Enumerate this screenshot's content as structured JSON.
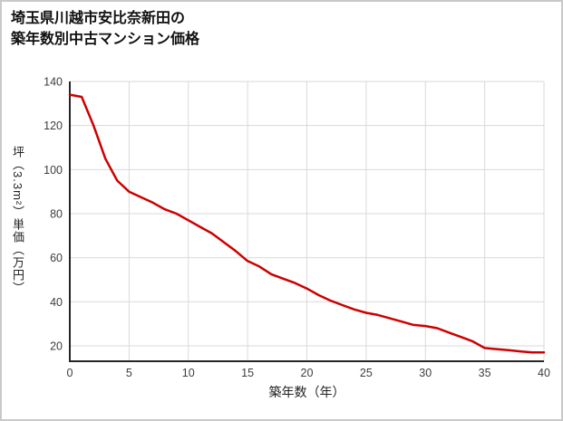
{
  "title": {
    "lines": [
      "埼玉県川越市安比奈新田の",
      "築年数別中古マンション価格"
    ]
  },
  "chart_data": {
    "type": "line",
    "title": "埼玉県川越市安比奈新田の築年数別中古マンション価格",
    "xlabel": "築年数（年）",
    "ylabel": "坪（3.3m²）単価（万円）",
    "x": [
      0,
      1,
      2,
      3,
      4,
      5,
      6,
      7,
      8,
      9,
      10,
      11,
      12,
      13,
      14,
      15,
      16,
      17,
      18,
      19,
      20,
      21,
      22,
      23,
      24,
      25,
      26,
      27,
      28,
      29,
      30,
      31,
      32,
      33,
      34,
      35,
      36,
      37,
      38,
      39,
      40
    ],
    "series": [
      {
        "name": "坪単価（万円）",
        "values": [
          134,
          133,
          120,
          105,
          95,
          90,
          87.5,
          85,
          82,
          80,
          77,
          74,
          71,
          67,
          63,
          58.5,
          56,
          52.5,
          50.5,
          48.5,
          46,
          43,
          40.5,
          38.5,
          36.5,
          35,
          34,
          32.5,
          31,
          29.5,
          29,
          28,
          26,
          24,
          22,
          19,
          18.5,
          18,
          17.5,
          17,
          17
        ]
      }
    ],
    "xlim": [
      0,
      40
    ],
    "ylim": [
      13,
      140
    ],
    "xticks": [
      0,
      5,
      10,
      15,
      20,
      25,
      30,
      35,
      40
    ],
    "yticks": [
      20,
      40,
      60,
      80,
      100,
      120,
      140
    ],
    "grid": true,
    "legend": "none",
    "colors": {
      "line": "#cc0000",
      "grid": "#d9d9d9",
      "axis": "#262626",
      "tick_text": "#3d3d3d",
      "background": "#ffffff",
      "border": "#c9c9c9"
    }
  }
}
